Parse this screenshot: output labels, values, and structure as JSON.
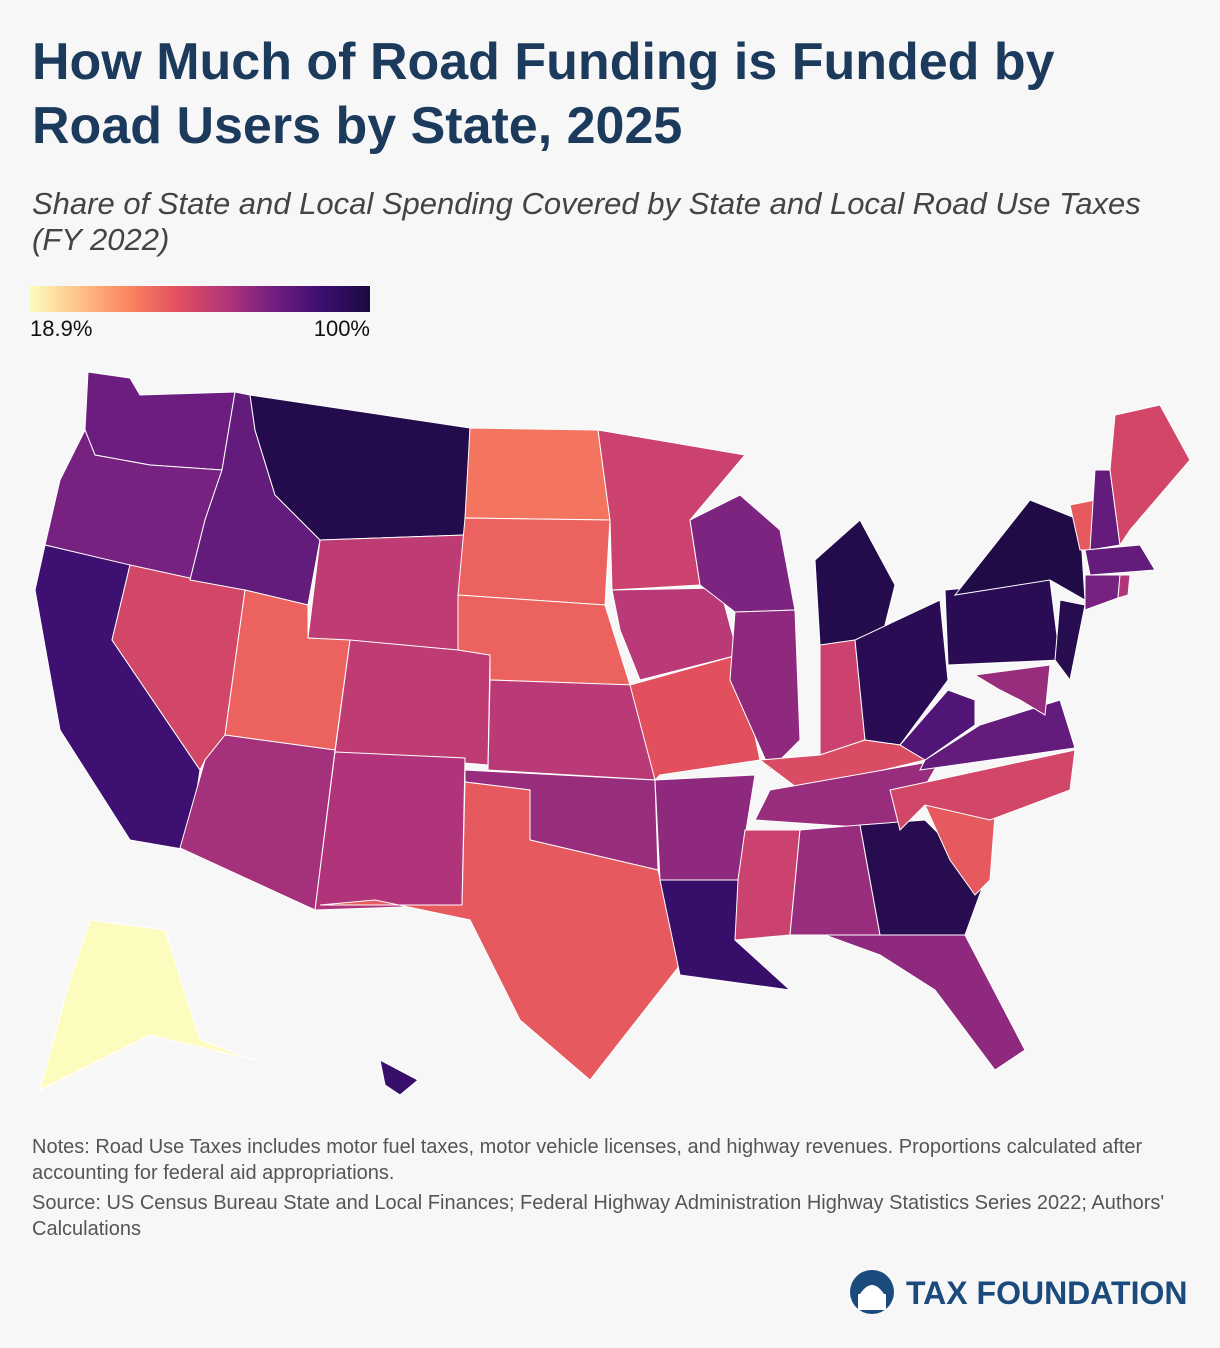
{
  "chart_data": {
    "type": "choropleth",
    "title": "How Much of Road Funding is Funded by Road Users by State, 2025",
    "subtitle": "Share of State and Local Spending Covered by State and Local Road Use Taxes (FY 2022)",
    "range": [
      {
        "value": 18.9,
        "label": "18.9%"
      },
      {
        "value": 100,
        "label": "100%"
      }
    ],
    "colors": [
      "#fcfdbf",
      "#fec287",
      "#fb8761",
      "#e3515d",
      "#b5367a",
      "#721f81",
      "#3b0f70",
      "#1c0a3f"
    ],
    "values": [
      78,
      76,
      88,
      58,
      80,
      97,
      63,
      50,
      68,
      63,
      66,
      46,
      50,
      50,
      64,
      70,
      52,
      60,
      64,
      54,
      72,
      90,
      75,
      72,
      97,
      60,
      95,
      56,
      70,
      60,
      70,
      96,
      72,
      52,
      58,
      80,
      84,
      95,
      98,
      96,
      52,
      80,
      58,
      80,
      76,
      66,
      70,
      19,
      90
    ]
  },
  "notes": "Notes: Road Use Taxes includes motor fuel taxes, motor vehicle licenses, and highway revenues. Proportions calculated after accounting for federal aid appropriations.",
  "source": "Source: US Census Bureau State and Local Finances; Federal Highway Administration Highway Statistics Series 2022; Authors' Calculations",
  "brand": "TAX FOUNDATION"
}
